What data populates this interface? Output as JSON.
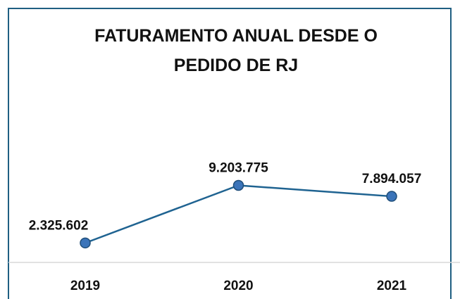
{
  "chart_data": {
    "type": "line",
    "title": "FATURAMENTO ANUAL DESDE O PEDIDO DE RJ",
    "categories": [
      "2019",
      "2020",
      "2021"
    ],
    "series": [
      {
        "name": "Faturamento",
        "color": "#1f6391",
        "values": [
          2325602,
          9203775,
          7894057
        ],
        "value_labels": [
          "2.325.602",
          "9.203.775",
          "7.894.057"
        ]
      }
    ],
    "ylim": [
      0,
      10000000
    ]
  }
}
